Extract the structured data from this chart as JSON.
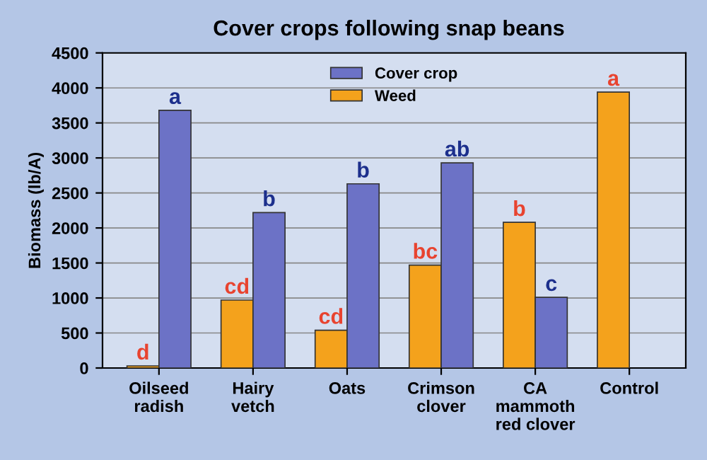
{
  "chart_data": {
    "type": "bar",
    "title": "Cover crops following snap beans",
    "ylabel": "Biomass (lb/A)",
    "categories": [
      "Oilseed\nradish",
      "Hairy\nvetch",
      "Oats",
      "Crimson\nclover",
      "CA\nmammoth\nred clover",
      "Control"
    ],
    "series": [
      {
        "name": "Weed",
        "color": "#f4a21c",
        "values": [
          30,
          970,
          540,
          1470,
          2080,
          3940
        ],
        "value_labels": [
          "d",
          "cd",
          "cd",
          "bc",
          "b",
          "a"
        ]
      },
      {
        "name": "Cover crop",
        "color": "#6c72c6",
        "values": [
          3680,
          2220,
          2630,
          2930,
          1010,
          null
        ],
        "value_labels": [
          "a",
          "b",
          "b",
          "ab",
          "c",
          null
        ]
      }
    ],
    "ylim": [
      0,
      4500
    ],
    "yticks": [
      0,
      500,
      1000,
      1500,
      2000,
      2500,
      3000,
      3500,
      4000,
      4500
    ],
    "grid": "y",
    "legend": "top"
  }
}
